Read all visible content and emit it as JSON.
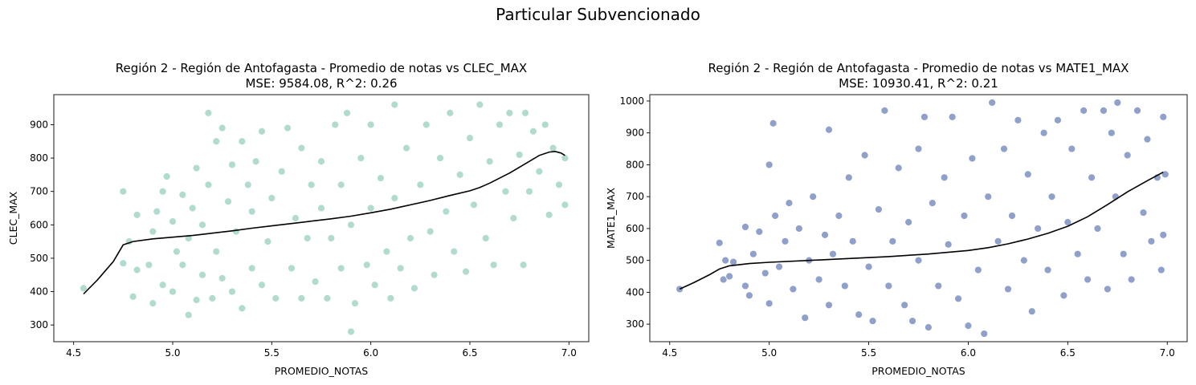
{
  "suptitle": "Particular Subvencionado",
  "chart_data": [
    {
      "type": "scatter",
      "title": "Región 2 - Región de Antofagasta - Promedio de notas vs CLEC_MAX",
      "subtitle": "MSE: 9584.08, R^2: 0.26",
      "xlabel": "PROMEDIO_NOTAS",
      "ylabel": "CLEC_MAX",
      "xlim": [
        4.4,
        7.1
      ],
      "ylim": [
        250,
        990
      ],
      "xticks": [
        4.5,
        5.0,
        5.5,
        6.0,
        6.5,
        7.0
      ],
      "xtick_labels": [
        "4.5",
        "5.0",
        "5.5",
        "6.0",
        "6.5",
        "7.0"
      ],
      "yticks": [
        300,
        400,
        500,
        600,
        700,
        800,
        900
      ],
      "ytick_labels": [
        "300",
        "400",
        "500",
        "600",
        "700",
        "800",
        "900"
      ],
      "grid": false,
      "point_color": "#b1dccd",
      "line_color": "#000000",
      "points": [
        [
          4.55,
          410
        ],
        [
          4.75,
          700
        ],
        [
          4.75,
          485
        ],
        [
          4.78,
          550
        ],
        [
          4.8,
          385
        ],
        [
          4.82,
          465
        ],
        [
          4.82,
          630
        ],
        [
          4.88,
          480
        ],
        [
          4.9,
          365
        ],
        [
          4.9,
          580
        ],
        [
          4.92,
          640
        ],
        [
          4.95,
          420
        ],
        [
          4.95,
          700
        ],
        [
          4.97,
          745
        ],
        [
          5.0,
          400
        ],
        [
          5.0,
          610
        ],
        [
          5.02,
          520
        ],
        [
          5.05,
          480
        ],
        [
          5.05,
          690
        ],
        [
          5.08,
          330
        ],
        [
          5.08,
          560
        ],
        [
          5.1,
          650
        ],
        [
          5.12,
          375
        ],
        [
          5.12,
          770
        ],
        [
          5.15,
          450
        ],
        [
          5.15,
          600
        ],
        [
          5.18,
          935
        ],
        [
          5.18,
          720
        ],
        [
          5.2,
          380
        ],
        [
          5.22,
          520
        ],
        [
          5.22,
          850
        ],
        [
          5.25,
          890
        ],
        [
          5.25,
          440
        ],
        [
          5.28,
          670
        ],
        [
          5.3,
          400
        ],
        [
          5.3,
          780
        ],
        [
          5.32,
          580
        ],
        [
          5.35,
          350
        ],
        [
          5.35,
          850
        ],
        [
          5.38,
          720
        ],
        [
          5.4,
          470
        ],
        [
          5.4,
          640
        ],
        [
          5.42,
          790
        ],
        [
          5.45,
          420
        ],
        [
          5.45,
          880
        ],
        [
          5.48,
          550
        ],
        [
          5.5,
          680
        ],
        [
          5.52,
          380
        ],
        [
          5.55,
          760
        ],
        [
          5.58,
          890
        ],
        [
          5.6,
          470
        ],
        [
          5.62,
          620
        ],
        [
          5.65,
          380
        ],
        [
          5.65,
          830
        ],
        [
          5.68,
          560
        ],
        [
          5.7,
          720
        ],
        [
          5.72,
          430
        ],
        [
          5.75,
          650
        ],
        [
          5.75,
          790
        ],
        [
          5.78,
          380
        ],
        [
          5.8,
          560
        ],
        [
          5.82,
          900
        ],
        [
          5.85,
          470
        ],
        [
          5.85,
          720
        ],
        [
          5.88,
          935
        ],
        [
          5.9,
          280
        ],
        [
          5.9,
          600
        ],
        [
          5.92,
          365
        ],
        [
          5.95,
          800
        ],
        [
          5.98,
          480
        ],
        [
          6.0,
          900
        ],
        [
          6.0,
          650
        ],
        [
          6.02,
          420
        ],
        [
          6.05,
          740
        ],
        [
          6.08,
          520
        ],
        [
          6.1,
          380
        ],
        [
          6.12,
          960
        ],
        [
          6.12,
          680
        ],
        [
          6.15,
          470
        ],
        [
          6.18,
          830
        ],
        [
          6.2,
          560
        ],
        [
          6.22,
          410
        ],
        [
          6.25,
          720
        ],
        [
          6.28,
          900
        ],
        [
          6.3,
          580
        ],
        [
          6.32,
          450
        ],
        [
          6.35,
          800
        ],
        [
          6.38,
          640
        ],
        [
          6.4,
          935
        ],
        [
          6.42,
          520
        ],
        [
          6.45,
          750
        ],
        [
          6.48,
          460
        ],
        [
          6.5,
          860
        ],
        [
          6.52,
          660
        ],
        [
          6.55,
          960
        ],
        [
          6.58,
          560
        ],
        [
          6.6,
          790
        ],
        [
          6.62,
          480
        ],
        [
          6.65,
          900
        ],
        [
          6.68,
          700
        ],
        [
          6.7,
          935
        ],
        [
          6.72,
          620
        ],
        [
          6.75,
          810
        ],
        [
          6.77,
          480
        ],
        [
          6.78,
          935
        ],
        [
          6.8,
          700
        ],
        [
          6.82,
          880
        ],
        [
          6.85,
          760
        ],
        [
          6.88,
          900
        ],
        [
          6.9,
          630
        ],
        [
          6.92,
          830
        ],
        [
          6.95,
          720
        ],
        [
          6.98,
          800
        ],
        [
          6.98,
          660
        ]
      ],
      "fit_line": [
        [
          4.55,
          393
        ],
        [
          4.62,
          435
        ],
        [
          4.7,
          490
        ],
        [
          4.75,
          540
        ],
        [
          4.8,
          550
        ],
        [
          4.9,
          558
        ],
        [
          5.0,
          563
        ],
        [
          5.1,
          568
        ],
        [
          5.2,
          575
        ],
        [
          5.3,
          582
        ],
        [
          5.4,
          590
        ],
        [
          5.5,
          597
        ],
        [
          5.6,
          604
        ],
        [
          5.7,
          611
        ],
        [
          5.8,
          618
        ],
        [
          5.9,
          626
        ],
        [
          6.0,
          636
        ],
        [
          6.1,
          647
        ],
        [
          6.2,
          660
        ],
        [
          6.3,
          673
        ],
        [
          6.4,
          688
        ],
        [
          6.5,
          702
        ],
        [
          6.55,
          712
        ],
        [
          6.6,
          725
        ],
        [
          6.7,
          755
        ],
        [
          6.8,
          790
        ],
        [
          6.85,
          808
        ],
        [
          6.9,
          818
        ],
        [
          6.93,
          820
        ],
        [
          6.96,
          815
        ],
        [
          6.98,
          808
        ]
      ]
    },
    {
      "type": "scatter",
      "title": "Región 2 - Región de Antofagasta - Promedio de notas vs MATE1_MAX",
      "subtitle": "MSE: 10930.41, R^2: 0.21",
      "xlabel": "PROMEDIO_NOTAS",
      "ylabel": "MATE1_MAX",
      "xlim": [
        4.4,
        7.1
      ],
      "ylim": [
        245,
        1020
      ],
      "xticks": [
        4.5,
        5.0,
        5.5,
        6.0,
        6.5,
        7.0
      ],
      "xtick_labels": [
        "4.5",
        "5.0",
        "5.5",
        "6.0",
        "6.5",
        "7.0"
      ],
      "yticks": [
        300,
        400,
        500,
        600,
        700,
        800,
        900,
        1000
      ],
      "ytick_labels": [
        "300",
        "400",
        "500",
        "600",
        "700",
        "800",
        "900",
        "1000"
      ],
      "grid": false,
      "point_color": "#8fa0cb",
      "line_color": "#000000",
      "points": [
        [
          4.55,
          410
        ],
        [
          4.75,
          555
        ],
        [
          4.77,
          440
        ],
        [
          4.78,
          500
        ],
        [
          4.8,
          450
        ],
        [
          4.82,
          495
        ],
        [
          4.88,
          420
        ],
        [
          4.88,
          605
        ],
        [
          4.9,
          390
        ],
        [
          4.92,
          520
        ],
        [
          4.95,
          590
        ],
        [
          4.98,
          460
        ],
        [
          5.0,
          800
        ],
        [
          5.0,
          365
        ],
        [
          5.02,
          930
        ],
        [
          5.03,
          640
        ],
        [
          5.05,
          480
        ],
        [
          5.08,
          560
        ],
        [
          5.1,
          680
        ],
        [
          5.12,
          410
        ],
        [
          5.15,
          600
        ],
        [
          5.18,
          320
        ],
        [
          5.2,
          500
        ],
        [
          5.22,
          700
        ],
        [
          5.25,
          440
        ],
        [
          5.28,
          580
        ],
        [
          5.3,
          360
        ],
        [
          5.3,
          910
        ],
        [
          5.32,
          520
        ],
        [
          5.35,
          640
        ],
        [
          5.38,
          420
        ],
        [
          5.4,
          760
        ],
        [
          5.42,
          560
        ],
        [
          5.45,
          330
        ],
        [
          5.48,
          830
        ],
        [
          5.5,
          480
        ],
        [
          5.52,
          310
        ],
        [
          5.55,
          660
        ],
        [
          5.58,
          970
        ],
        [
          5.6,
          420
        ],
        [
          5.62,
          560
        ],
        [
          5.65,
          790
        ],
        [
          5.68,
          360
        ],
        [
          5.7,
          620
        ],
        [
          5.72,
          310
        ],
        [
          5.75,
          850
        ],
        [
          5.75,
          500
        ],
        [
          5.78,
          950
        ],
        [
          5.8,
          290
        ],
        [
          5.82,
          680
        ],
        [
          5.85,
          420
        ],
        [
          5.88,
          760
        ],
        [
          5.9,
          550
        ],
        [
          5.92,
          950
        ],
        [
          5.95,
          380
        ],
        [
          5.98,
          640
        ],
        [
          6.0,
          295
        ],
        [
          6.02,
          820
        ],
        [
          6.05,
          470
        ],
        [
          6.08,
          270
        ],
        [
          6.1,
          700
        ],
        [
          6.12,
          995
        ],
        [
          6.15,
          560
        ],
        [
          6.18,
          850
        ],
        [
          6.2,
          410
        ],
        [
          6.22,
          640
        ],
        [
          6.25,
          940
        ],
        [
          6.28,
          500
        ],
        [
          6.3,
          770
        ],
        [
          6.32,
          340
        ],
        [
          6.35,
          600
        ],
        [
          6.38,
          900
        ],
        [
          6.4,
          470
        ],
        [
          6.42,
          700
        ],
        [
          6.45,
          940
        ],
        [
          6.48,
          390
        ],
        [
          6.5,
          620
        ],
        [
          6.52,
          850
        ],
        [
          6.55,
          520
        ],
        [
          6.58,
          970
        ],
        [
          6.6,
          440
        ],
        [
          6.62,
          760
        ],
        [
          6.65,
          600
        ],
        [
          6.68,
          970
        ],
        [
          6.7,
          410
        ],
        [
          6.72,
          900
        ],
        [
          6.74,
          700
        ],
        [
          6.75,
          995
        ],
        [
          6.78,
          520
        ],
        [
          6.8,
          830
        ],
        [
          6.82,
          440
        ],
        [
          6.85,
          970
        ],
        [
          6.88,
          650
        ],
        [
          6.9,
          880
        ],
        [
          6.92,
          560
        ],
        [
          6.95,
          760
        ],
        [
          6.97,
          470
        ],
        [
          6.98,
          950
        ],
        [
          6.98,
          580
        ],
        [
          6.99,
          770
        ]
      ],
      "fit_line": [
        [
          4.55,
          410
        ],
        [
          4.62,
          430
        ],
        [
          4.7,
          455
        ],
        [
          4.75,
          473
        ],
        [
          4.8,
          483
        ],
        [
          4.9,
          490
        ],
        [
          5.0,
          494
        ],
        [
          5.2,
          500
        ],
        [
          5.4,
          506
        ],
        [
          5.6,
          512
        ],
        [
          5.8,
          520
        ],
        [
          6.0,
          531
        ],
        [
          6.1,
          540
        ],
        [
          6.2,
          552
        ],
        [
          6.3,
          567
        ],
        [
          6.4,
          585
        ],
        [
          6.5,
          607
        ],
        [
          6.6,
          637
        ],
        [
          6.7,
          675
        ],
        [
          6.8,
          715
        ],
        [
          6.9,
          750
        ],
        [
          6.98,
          777
        ]
      ]
    }
  ]
}
